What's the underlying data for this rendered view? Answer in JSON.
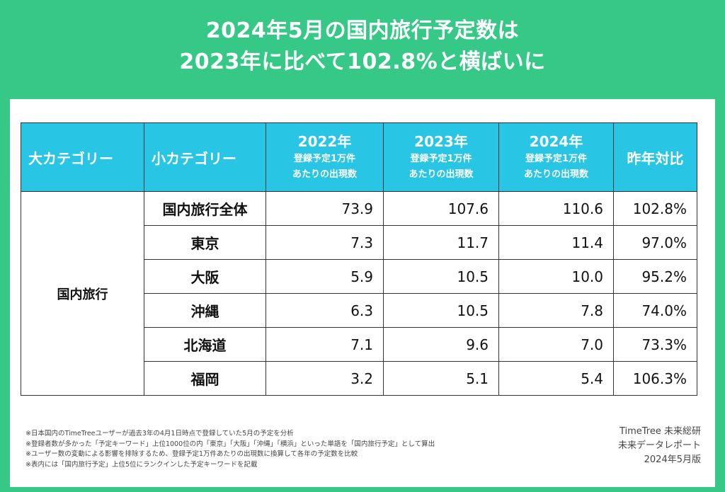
{
  "title": {
    "line1": "2024年5月の国内旅行予定数は",
    "line2": "2023年に比べて102.8%と横ばいに"
  },
  "table": {
    "headers": {
      "big_category": "大カテゴリー",
      "small_category": "小カテゴリー",
      "years": [
        {
          "year": "2022年",
          "sub1": "登録予定1万件",
          "sub2": "あたりの出現数"
        },
        {
          "year": "2023年",
          "sub1": "登録予定1万件",
          "sub2": "あたりの出現数"
        },
        {
          "year": "2024年",
          "sub1": "登録予定1万件",
          "sub2": "あたりの出現数"
        }
      ],
      "ratio": "昨年対比"
    },
    "big_category": "国内旅行",
    "rows": [
      {
        "name": "国内旅行全体",
        "y2022": "73.9",
        "y2023": "107.6",
        "y2024": "110.6",
        "ratio": "102.8%"
      },
      {
        "name": "東京",
        "y2022": "7.3",
        "y2023": "11.7",
        "y2024": "11.4",
        "ratio": "97.0%"
      },
      {
        "name": "大阪",
        "y2022": "5.9",
        "y2023": "10.5",
        "y2024": "10.0",
        "ratio": "95.2%"
      },
      {
        "name": "沖縄",
        "y2022": "6.3",
        "y2023": "10.5",
        "y2024": "7.8",
        "ratio": "74.0%"
      },
      {
        "name": "北海道",
        "y2022": "7.1",
        "y2023": "9.6",
        "y2024": "7.0",
        "ratio": "73.3%"
      },
      {
        "name": "福岡",
        "y2022": "3.2",
        "y2023": "5.1",
        "y2024": "5.4",
        "ratio": "106.3%"
      }
    ]
  },
  "notes": [
    "※日本国内のTimeTreeユーザーが過去3年の4月1日時点で登録していた5月の予定を分析",
    "※登録者数が多かった「予定キーワード」上位1000位の内「東京」「大阪」「沖縄」「横浜」といった単語を「国内旅行予定」として算出",
    "※ユーザー数の変動による影響を排除するため、登録予定1万件あたりの出現数に換算して各年の予定数を比較",
    "※表内には「国内旅行予定」上位5位にランクインした予定キーワードを記載"
  ],
  "credit": {
    "line1": "TimeTree 未来総研",
    "line2": "未来データレポート",
    "line3": "2024年5月版"
  },
  "colors": {
    "background": "#35c886",
    "header": "#28c5e4"
  }
}
